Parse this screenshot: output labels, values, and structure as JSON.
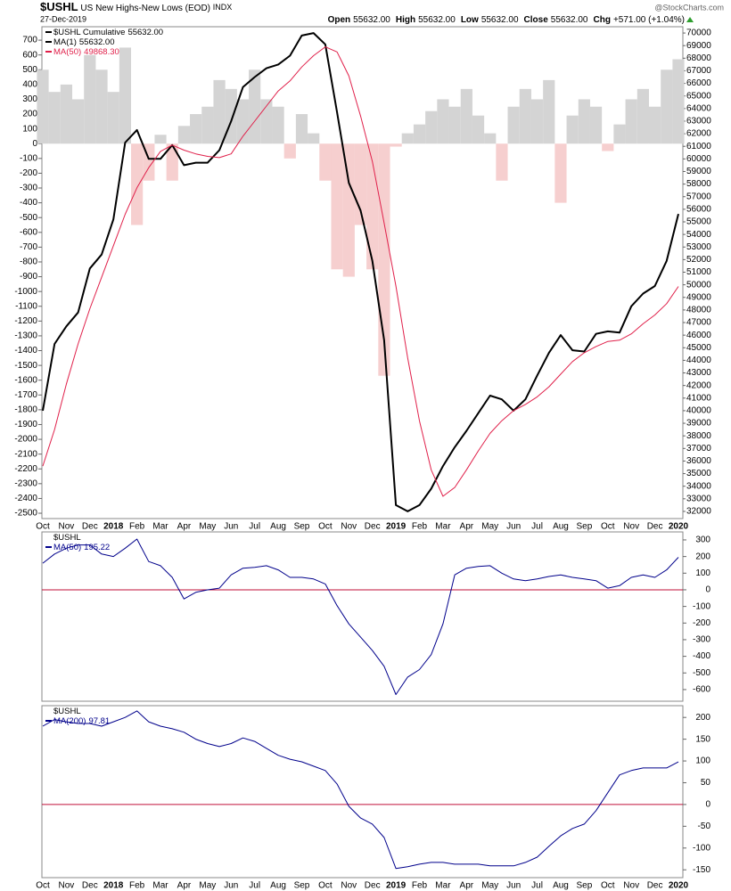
{
  "header": {
    "symbol": "$USHL",
    "name": "US New Highs-New Lows (EOD)",
    "exchange": "INDX",
    "source": "@StockCharts.com",
    "date": "27-Dec-2019",
    "quote": [
      {
        "label": "Open",
        "value": "55632.00"
      },
      {
        "label": "High",
        "value": "55632.00"
      },
      {
        "label": "Low",
        "value": "55632.00"
      },
      {
        "label": "Close",
        "value": "55632.00"
      },
      {
        "label": "Chg",
        "value": "+571.00 (+1.04%)"
      }
    ]
  },
  "chart_data": [
    {
      "type": "line",
      "categories": [
        "Oct",
        null,
        "Nov",
        null,
        "Dec",
        null,
        "2018",
        null,
        "Feb",
        null,
        "Mar",
        null,
        "Apr",
        null,
        "May",
        null,
        "Jun",
        null,
        "Jul",
        null,
        "Aug",
        null,
        "Sep",
        null,
        "Oct",
        null,
        "Nov",
        null,
        "Dec",
        null,
        "2019",
        null,
        "Feb",
        null,
        "Mar",
        null,
        "Apr",
        null,
        "May",
        null,
        "Jun",
        null,
        "Jul",
        null,
        "Aug",
        null,
        "Sep",
        null,
        "Oct",
        null,
        "Nov",
        null,
        "Dec",
        null,
        "2020"
      ],
      "price": {
        "name": "$USHL Cumulative",
        "value_label": "55632.00",
        "color": "#000000"
      },
      "bars": {
        "color_up": "#d4d4d4",
        "color_down": "#f6cfcf",
        "values": [
          500,
          350,
          400,
          300,
          600,
          500,
          350,
          650,
          -550,
          -250,
          60,
          -250,
          120,
          200,
          250,
          430,
          370,
          300,
          500,
          300,
          250,
          -100,
          200,
          70,
          -250,
          -850,
          -900,
          -550,
          -850,
          -1570,
          -20,
          70,
          130,
          220,
          300,
          250,
          370,
          190,
          70,
          -250,
          250,
          370,
          300,
          430,
          -400,
          190,
          300,
          250,
          -50,
          130,
          300,
          370,
          250,
          500,
          571
        ]
      },
      "series": [
        {
          "name": "MA(1)",
          "value_label": "55632.00",
          "color": "#000000",
          "axis": "y2",
          "width": 2,
          "values": [
            40000,
            45300,
            46700,
            47800,
            51300,
            52400,
            55200,
            61300,
            62300,
            60000,
            60000,
            61100,
            59500,
            59700,
            59700,
            60700,
            63000,
            65700,
            66500,
            67200,
            67500,
            68200,
            69800,
            70000,
            69100,
            63700,
            58100,
            55900,
            51900,
            45600,
            32500,
            32000,
            32500,
            33800,
            35600,
            37100,
            38400,
            39800,
            41200,
            40900,
            40000,
            40900,
            42800,
            44600,
            46000,
            44800,
            44700,
            46100,
            46300,
            46200,
            48300,
            49300,
            49900,
            51900,
            55632
          ]
        },
        {
          "name": "MA(50)",
          "value_label": "49868.30",
          "color": "#e0204a",
          "axis": "y2",
          "width": 1,
          "values": [
            35600,
            38500,
            42100,
            45300,
            48100,
            50600,
            53100,
            55600,
            57700,
            59300,
            60600,
            61100,
            60700,
            60400,
            60200,
            60100,
            60400,
            61800,
            63000,
            64200,
            65400,
            66200,
            67300,
            68200,
            68900,
            68500,
            66600,
            63400,
            59800,
            54900,
            49900,
            44200,
            39200,
            35300,
            33200,
            33900,
            35300,
            36800,
            38200,
            39200,
            40000,
            40500,
            41100,
            41900,
            42900,
            43900,
            44600,
            45100,
            45500,
            45600,
            46100,
            46900,
            47600,
            48500,
            49868.3
          ]
        }
      ],
      "ylim": [
        -2536,
        791
      ],
      "yaxis_side": "left",
      "yticks": [
        700,
        600,
        500,
        400,
        300,
        200,
        100,
        0,
        -100,
        -200,
        -300,
        -400,
        -500,
        -600,
        -700,
        -800,
        -900,
        -1000,
        -1100,
        -1200,
        -1300,
        -1400,
        -1500,
        -1600,
        -1700,
        -1800,
        -1900,
        -2000,
        -2100,
        -2200,
        -2300,
        -2400,
        -2500
      ],
      "y2lim": [
        31430,
        70500
      ],
      "y2ticks": [
        70000,
        69000,
        68000,
        67000,
        66000,
        65000,
        64000,
        63000,
        62000,
        61000,
        60000,
        59000,
        58000,
        57000,
        56000,
        55000,
        54000,
        53000,
        52000,
        51000,
        50000,
        49000,
        48000,
        47000,
        46000,
        45000,
        44000,
        43000,
        42000,
        41000,
        40000,
        39000,
        38000,
        37000,
        36000,
        35000,
        34000,
        33000,
        32000
      ]
    },
    {
      "type": "line",
      "price_name": "$USHL",
      "zero_line_color": "#c0103a",
      "yaxis_side": "right",
      "series": [
        {
          "name": "MA(50)",
          "value_label": "195.22",
          "color": "#00008b",
          "width": 1,
          "values": [
            160,
            215,
            250,
            270,
            270,
            215,
            200,
            250,
            305,
            170,
            145,
            75,
            -55,
            -15,
            0,
            10,
            90,
            130,
            135,
            145,
            120,
            75,
            75,
            65,
            35,
            -95,
            -205,
            -285,
            -365,
            -460,
            -630,
            -525,
            -480,
            -390,
            -205,
            90,
            130,
            140,
            145,
            100,
            65,
            55,
            65,
            80,
            90,
            75,
            65,
            55,
            10,
            25,
            75,
            90,
            75,
            120,
            195.22
          ]
        }
      ],
      "ylim": [
        -670,
        348
      ],
      "yticks": [
        300,
        200,
        100,
        0,
        -100,
        -200,
        -300,
        -400,
        -500,
        -600
      ]
    },
    {
      "type": "line",
      "price_name": "$USHL",
      "zero_line_color": "#c0103a",
      "yaxis_side": "right",
      "categories": [
        "Oct",
        null,
        "Nov",
        null,
        "Dec",
        null,
        "2018",
        null,
        "Feb",
        null,
        "Mar",
        null,
        "Apr",
        null,
        "May",
        null,
        "Jun",
        null,
        "Jul",
        null,
        "Aug",
        null,
        "Sep",
        null,
        "Oct",
        null,
        "Nov",
        null,
        "Dec",
        null,
        "2019",
        null,
        "Feb",
        null,
        "Mar",
        null,
        "Apr",
        null,
        "May",
        null,
        "Jun",
        null,
        "Jul",
        null,
        "Aug",
        null,
        "Sep",
        null,
        "Oct",
        null,
        "Nov",
        null,
        "Dec",
        null,
        "2020"
      ],
      "series": [
        {
          "name": "MA(200)",
          "value_label": "97.81",
          "color": "#00008b",
          "width": 1,
          "values": [
            180,
            195,
            190,
            186,
            186,
            180,
            190,
            200,
            215,
            190,
            180,
            174,
            166,
            150,
            140,
            133,
            140,
            153,
            145,
            129,
            113,
            104,
            98,
            88,
            78,
            47,
            -4,
            -31,
            -45,
            -76,
            -147,
            -143,
            -137,
            -133,
            -133,
            -137,
            -137,
            -137,
            -141,
            -141,
            -141,
            -133,
            -121,
            -96,
            -72,
            -55,
            -45,
            -14,
            27,
            68,
            78,
            84,
            84,
            84,
            97.81
          ]
        }
      ],
      "ylim": [
        -168,
        227
      ],
      "yticks": [
        200,
        150,
        100,
        50,
        0,
        -50,
        -100,
        -150
      ]
    }
  ]
}
